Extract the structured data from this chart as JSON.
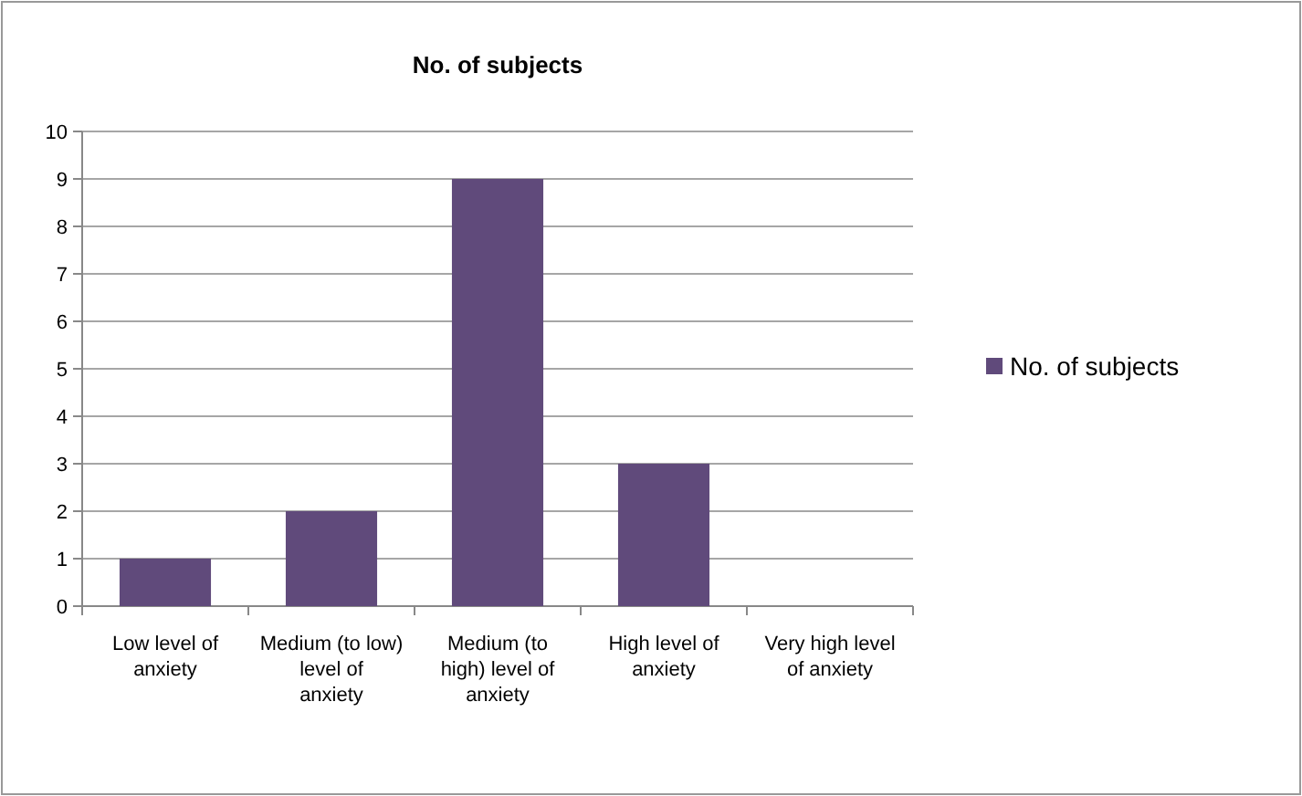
{
  "chart_data": {
    "type": "bar",
    "title": "No. of subjects",
    "categories": [
      "Low level of anxiety",
      "Medium (to low) level of anxiety",
      "Medium (to high) level of anxiety",
      "High level of anxiety",
      "Very high level of anxiety"
    ],
    "series": [
      {
        "name": "No. of subjects",
        "color": "#604a7b",
        "values": [
          1,
          2,
          9,
          3,
          0
        ]
      }
    ],
    "ylim": [
      0,
      10
    ],
    "yticks": [
      0,
      1,
      2,
      3,
      4,
      5,
      6,
      7,
      8,
      9,
      10
    ],
    "grid": "y",
    "legend": "right"
  }
}
